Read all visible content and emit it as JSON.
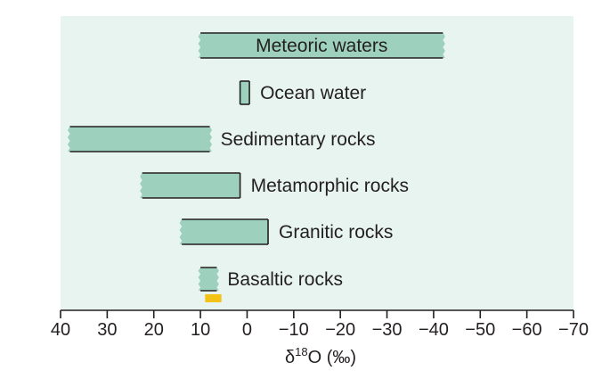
{
  "chart_data": {
    "type": "bar",
    "orientation": "horizontal-range",
    "xlabel": {
      "prefix": "δ",
      "superscript": "18",
      "main": "O (‰)"
    },
    "xlim": [
      40,
      -70
    ],
    "x_reversed": true,
    "xticks": [
      40,
      30,
      20,
      10,
      0,
      -10,
      -20,
      -30,
      -40,
      -50,
      -60,
      -70
    ],
    "xtick_labels": [
      "40",
      "30",
      "20",
      "10",
      "0",
      "−10",
      "−20",
      "−30",
      "−40",
      "−50",
      "−60",
      "−70"
    ],
    "grid": false,
    "legend": "none",
    "ranges": [
      {
        "label": "Meteoric waters",
        "from": 10,
        "to": -42,
        "jagged_from": true,
        "jagged_to": true,
        "label_inside": true
      },
      {
        "label": "Ocean water",
        "from": 1.5,
        "to": -0.5,
        "jagged_from": false,
        "jagged_to": false,
        "label_inside": false
      },
      {
        "label": "Sedimentary rocks",
        "from": 38,
        "to": 8,
        "jagged_from": true,
        "jagged_to": true,
        "label_inside": false
      },
      {
        "label": "Metamorphic rocks",
        "from": 22.5,
        "to": 1.5,
        "jagged_from": true,
        "jagged_to": false,
        "label_inside": false
      },
      {
        "label": "Granitic rocks",
        "from": 14,
        "to": -4.5,
        "jagged_from": true,
        "jagged_to": false,
        "label_inside": false
      },
      {
        "label": "Basaltic rocks",
        "from": 10,
        "to": 6.5,
        "jagged_from": true,
        "jagged_to": true,
        "label_inside": false
      }
    ],
    "marker": {
      "from": 9,
      "to": 5.5,
      "row": "Basaltic rocks"
    },
    "colors": {
      "plot_background": "#e8f4ef",
      "bar_fill": "#9ed1bd",
      "bar_edge": "#231f20",
      "marker": "#f3c317",
      "axis": "#231f20",
      "text": "#231f20"
    }
  }
}
